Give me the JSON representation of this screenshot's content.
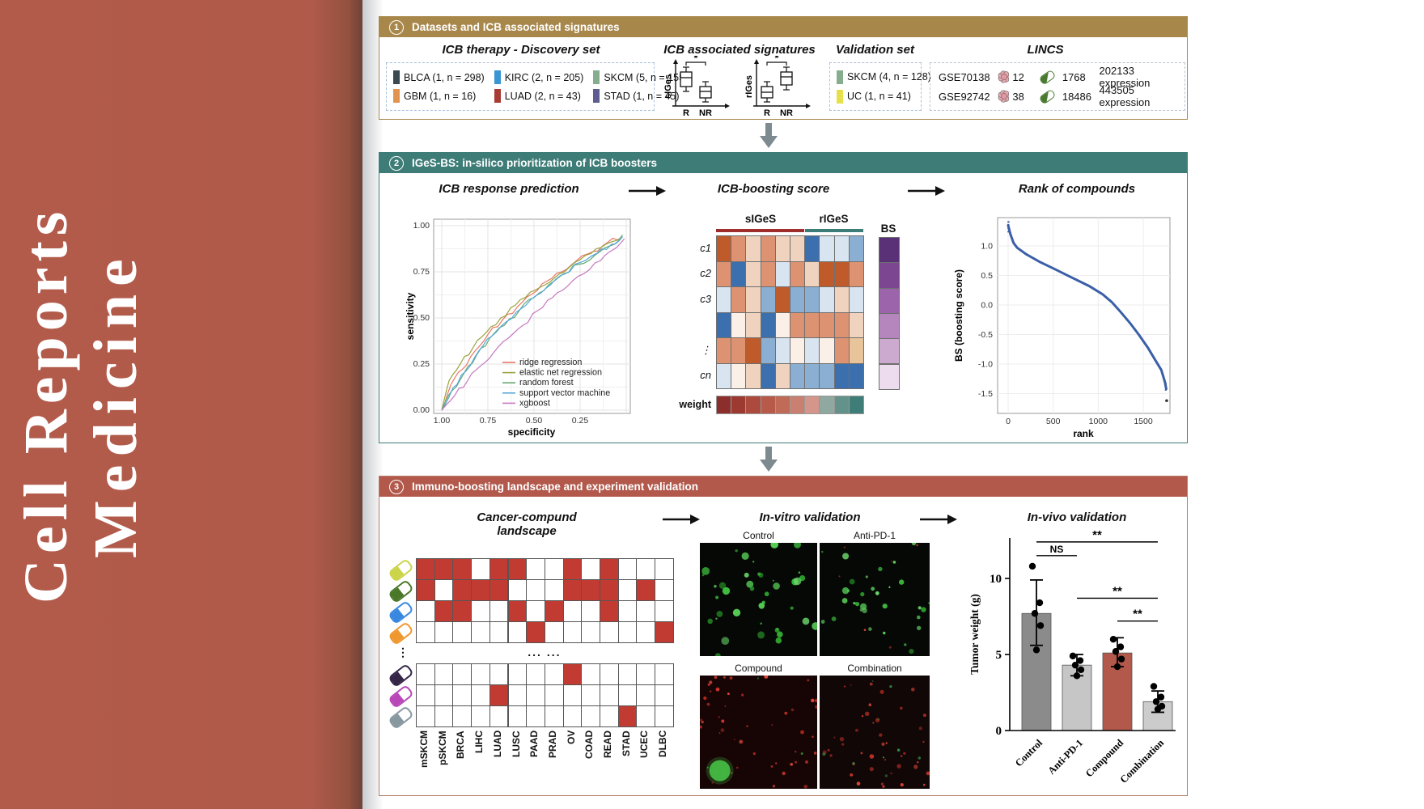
{
  "journal": {
    "line1": "Cell Reports",
    "line2": "Medicine"
  },
  "colors": {
    "band": "#b25b4b",
    "panel1_header": "#a8874b",
    "panel2_header": "#3e7c77",
    "panel3_header": "#b2594c",
    "landscape_red": "#c23b32",
    "sig_bar_red": "#9e2e2e",
    "sig_bar_teal": "#3e7c77",
    "rank_curve": "#3a5fa8"
  },
  "panel1": {
    "number": "1",
    "title": "Datasets and ICB associated signatures",
    "discovery": {
      "title": "ICB therapy - Discovery set",
      "items": [
        {
          "label": "BLCA (1, n = 298)",
          "color": "#3a4850"
        },
        {
          "label": "KIRC (2, n = 205)",
          "color": "#3a96d2"
        },
        {
          "label": "SKCM (5, n = 155)",
          "color": "#86ae8e"
        },
        {
          "label": "GBM (1, n = 16)",
          "color": "#e29350"
        },
        {
          "label": "LUAD (2, n = 43)",
          "color": "#a83c34"
        },
        {
          "label": "STAD (1, n = 45)",
          "color": "#5e5c90"
        }
      ]
    },
    "signatures": {
      "title": "ICB associated signatures",
      "plots": [
        {
          "ylabel": "sIGes",
          "xlabels": [
            "R",
            "NR"
          ],
          "sig": "*",
          "r_high": true
        },
        {
          "ylabel": "rIGes",
          "xlabels": [
            "R",
            "NR"
          ],
          "sig": "*",
          "r_high": false
        }
      ]
    },
    "validation": {
      "title": "Validation set",
      "items": [
        {
          "label": "SKCM (4, n = 128)",
          "color": "#86ae8e"
        },
        {
          "label": "UC (1, n = 41)",
          "color": "#e8e04a"
        }
      ]
    },
    "lincs": {
      "title": "LINCS",
      "rows": [
        {
          "dataset": "GSE70138",
          "cells": "12",
          "compounds": "1768",
          "expression": "202133 expression"
        },
        {
          "dataset": "GSE92742",
          "cells": "38",
          "compounds": "18486",
          "expression": "443505 expression"
        }
      ]
    }
  },
  "panel2": {
    "number": "2",
    "title": "IGeS-BS: in-silico prioritization of ICB boosters",
    "sections": [
      "ICB response prediction",
      "ICB-boosting score",
      "Rank of compounds"
    ],
    "roc": {
      "chart_data": {
        "type": "line",
        "title": "ICB response prediction",
        "xlabel": "specificity",
        "ylabel": "sensitivity",
        "xticks": [
          "1.00",
          "0.75",
          "0.50",
          "0.25"
        ],
        "yticks": [
          "1.00",
          "0.75",
          "0.50",
          "0.25",
          "0.00"
        ],
        "xlim": [
          1.0,
          0.0
        ],
        "ylim": [
          0.0,
          1.0
        ],
        "grid": true,
        "legend_position": "lower-right",
        "series": [
          {
            "name": "ridge regression",
            "color": "#e87868",
            "points": [
              [
                1.0,
                0.0
              ],
              [
                0.95,
                0.14
              ],
              [
                0.89,
                0.22
              ],
              [
                0.82,
                0.32
              ],
              [
                0.75,
                0.41
              ],
              [
                0.67,
                0.49
              ],
              [
                0.59,
                0.56
              ],
              [
                0.51,
                0.63
              ],
              [
                0.43,
                0.7
              ],
              [
                0.35,
                0.75
              ],
              [
                0.27,
                0.81
              ],
              [
                0.18,
                0.86
              ],
              [
                0.1,
                0.91
              ],
              [
                0.02,
                0.94
              ]
            ]
          },
          {
            "name": "elastic net regression",
            "color": "#9aa23c",
            "points": [
              [
                1.0,
                0.0
              ],
              [
                0.96,
                0.16
              ],
              [
                0.9,
                0.25
              ],
              [
                0.83,
                0.34
              ],
              [
                0.76,
                0.42
              ],
              [
                0.68,
                0.5
              ],
              [
                0.6,
                0.57
              ],
              [
                0.52,
                0.64
              ],
              [
                0.44,
                0.68
              ],
              [
                0.36,
                0.74
              ],
              [
                0.28,
                0.8
              ],
              [
                0.19,
                0.85
              ],
              [
                0.11,
                0.9
              ],
              [
                0.02,
                0.94
              ]
            ]
          },
          {
            "name": "random forest",
            "color": "#62aa74",
            "points": [
              [
                1.0,
                0.0
              ],
              [
                0.94,
                0.11
              ],
              [
                0.88,
                0.2
              ],
              [
                0.81,
                0.3
              ],
              [
                0.74,
                0.39
              ],
              [
                0.66,
                0.46
              ],
              [
                0.58,
                0.54
              ],
              [
                0.5,
                0.61
              ],
              [
                0.42,
                0.68
              ],
              [
                0.34,
                0.74
              ],
              [
                0.26,
                0.79
              ],
              [
                0.17,
                0.84
              ],
              [
                0.09,
                0.89
              ],
              [
                0.02,
                0.95
              ]
            ]
          },
          {
            "name": "support vector machine",
            "color": "#58a8d8",
            "points": [
              [
                1.0,
                0.0
              ],
              [
                0.94,
                0.12
              ],
              [
                0.87,
                0.21
              ],
              [
                0.8,
                0.32
              ],
              [
                0.73,
                0.4
              ],
              [
                0.65,
                0.48
              ],
              [
                0.57,
                0.55
              ],
              [
                0.49,
                0.62
              ],
              [
                0.41,
                0.68
              ],
              [
                0.33,
                0.74
              ],
              [
                0.25,
                0.8
              ],
              [
                0.16,
                0.85
              ],
              [
                0.08,
                0.9
              ],
              [
                0.02,
                0.94
              ]
            ]
          },
          {
            "name": "xgboost",
            "color": "#c678c0",
            "points": [
              [
                1.0,
                0.0
              ],
              [
                0.93,
                0.08
              ],
              [
                0.86,
                0.16
              ],
              [
                0.79,
                0.24
              ],
              [
                0.72,
                0.31
              ],
              [
                0.64,
                0.39
              ],
              [
                0.56,
                0.46
              ],
              [
                0.48,
                0.54
              ],
              [
                0.4,
                0.61
              ],
              [
                0.32,
                0.67
              ],
              [
                0.23,
                0.74
              ],
              [
                0.14,
                0.81
              ],
              [
                0.07,
                0.87
              ],
              [
                0.01,
                0.93
              ]
            ]
          }
        ]
      }
    },
    "heatmap": {
      "group1_label": "sIGeS",
      "group2_label": "rIGeS",
      "bs_label": "BS",
      "weight_label": "weight",
      "row_labels": [
        "c1",
        "c2",
        "c3",
        "",
        "⋮",
        "cn"
      ],
      "palette": {
        "O": "#bf5b2b",
        "o": "#dd9372",
        "p": "#f0d3bf",
        "w": "#faf0e8",
        "B": "#3c6fae",
        "b": "#8aafd3",
        "l": "#d8e4f0",
        "t": "#e8c49a"
      },
      "grid": [
        [
          "O",
          "o",
          "p",
          "o",
          "p",
          "p",
          "B",
          "l",
          "l",
          "b"
        ],
        [
          "o",
          "B",
          "p",
          "o",
          "l",
          "o",
          "p",
          "O",
          "O",
          "o"
        ],
        [
          "l",
          "o",
          "p",
          "b",
          "O",
          "b",
          "b",
          "l",
          "p",
          "l"
        ],
        [
          "B",
          "w",
          "p",
          "B",
          "w",
          "o",
          "o",
          "o",
          "o",
          "p"
        ],
        [
          "o",
          "o",
          "O",
          "b",
          "l",
          "w",
          "l",
          "w",
          "o",
          "t"
        ],
        [
          "l",
          "w",
          "p",
          "B",
          "p",
          "b",
          "b",
          "b",
          "B",
          "B"
        ]
      ],
      "group1_cols": 6,
      "group2_cols": 4,
      "bs_colors": [
        "#5a3077",
        "#7c4691",
        "#9c64aa",
        "#b586bd",
        "#ccaacf",
        "#ecdcee"
      ],
      "weight_colors": [
        "#8c2f2c",
        "#9c3a32",
        "#ac4a3e",
        "#b85a4a",
        "#c06a58",
        "#ca8070",
        "#d4968a",
        "#8fa8a0",
        "#62928a",
        "#3f7d78"
      ]
    },
    "rank": {
      "chart_data": {
        "type": "scatter",
        "title": "Rank of compounds",
        "xlabel": "rank",
        "ylabel": "BS (boosting score)",
        "xticks": [
          "0",
          "500",
          "1000",
          "1500"
        ],
        "yticks": [
          "1.0",
          "0.5",
          "0.0",
          "-0.5",
          "-1.0",
          "-1.5"
        ],
        "xlim": [
          0,
          1800
        ],
        "ylim": [
          -1.7,
          1.45
        ],
        "curve_color": "#3a5fa8",
        "points": [
          [
            0,
            1.35
          ],
          [
            25,
            1.2
          ],
          [
            60,
            1.05
          ],
          [
            100,
            0.97
          ],
          [
            200,
            0.86
          ],
          [
            350,
            0.73
          ],
          [
            500,
            0.62
          ],
          [
            700,
            0.47
          ],
          [
            900,
            0.32
          ],
          [
            1050,
            0.18
          ],
          [
            1150,
            0.05
          ],
          [
            1250,
            -0.12
          ],
          [
            1350,
            -0.3
          ],
          [
            1450,
            -0.5
          ],
          [
            1550,
            -0.72
          ],
          [
            1640,
            -0.95
          ],
          [
            1700,
            -1.1
          ],
          [
            1740,
            -1.3
          ],
          [
            1755,
            -1.42
          ]
        ],
        "outlier": [
          1760,
          -1.62
        ]
      }
    }
  },
  "panel3": {
    "number": "3",
    "title": "Immuno-boosting landscape and experiment validation",
    "sections": [
      "Cancer-compund landscape",
      "In-vitro validation",
      "In-vivo validation"
    ],
    "landscape": {
      "columns": [
        "mSKCM",
        "pSKCM",
        "BRCA",
        "LIHC",
        "LUAD",
        "LUSC",
        "PAAD",
        "PRAD",
        "OV",
        "COAD",
        "READ",
        "STAD",
        "UCEC",
        "DLBC"
      ],
      "ellipsis": "... ...",
      "pill_dots": "⋮",
      "pill_colors": [
        "#ccd44a",
        "#4a7828",
        "#3888e0",
        "#f09830",
        null,
        "#352647",
        "#b848b8",
        "#8898a0"
      ],
      "rows": [
        [
          1,
          1,
          1,
          0,
          1,
          1,
          0,
          0,
          1,
          0,
          1,
          0,
          0,
          0
        ],
        [
          1,
          0,
          1,
          1,
          1,
          0,
          0,
          0,
          1,
          1,
          1,
          0,
          1,
          0
        ],
        [
          0,
          1,
          1,
          0,
          0,
          1,
          0,
          1,
          0,
          0,
          1,
          0,
          0,
          0
        ],
        [
          0,
          0,
          0,
          0,
          0,
          0,
          1,
          0,
          0,
          0,
          0,
          0,
          0,
          1
        ],
        null,
        [
          0,
          0,
          0,
          0,
          0,
          0,
          0,
          0,
          1,
          0,
          0,
          0,
          0,
          0
        ],
        [
          0,
          0,
          0,
          0,
          1,
          0,
          0,
          0,
          0,
          0,
          0,
          0,
          0,
          0
        ],
        [
          0,
          0,
          0,
          0,
          0,
          0,
          0,
          0,
          0,
          0,
          0,
          1,
          0,
          0
        ]
      ]
    },
    "invitro": {
      "labels": [
        "Control",
        "Anti-PD-1",
        "Compound",
        "Combination"
      ]
    },
    "invivo": {
      "chart_data": {
        "type": "bar",
        "title": "In-vivo validation",
        "ylabel": "Tumor weight (g)",
        "yticks": [
          0,
          5,
          10
        ],
        "ylim": [
          0,
          13.7
        ],
        "categories": [
          "Control",
          "Anti-PD-1",
          "Compound",
          "Combination"
        ],
        "values": [
          7.7,
          4.3,
          5.1,
          1.9
        ],
        "bar_colors": [
          "#8b8b8b",
          "#c6c6c6",
          "#b2594c",
          "#cccccc"
        ],
        "error_lo": [
          5.6,
          3.6,
          4.2,
          1.2
        ],
        "error_hi": [
          9.9,
          5.0,
          6.1,
          2.6
        ],
        "points": [
          [
            10.8,
            8.4,
            7.7,
            6.9,
            5.3
          ],
          [
            4.9,
            4.6,
            4.3,
            4.0,
            3.6
          ],
          [
            6.0,
            5.5,
            5.2,
            4.7,
            4.2
          ],
          [
            2.9,
            2.2,
            1.9,
            1.6,
            1.4
          ]
        ],
        "significance": [
          {
            "from": 0,
            "to": 3,
            "label": "**",
            "y": 12.4
          },
          {
            "from": 0,
            "to": 1,
            "label": "NS",
            "y": 11.5
          },
          {
            "from": 1,
            "to": 3,
            "label": "**",
            "y": 8.7
          },
          {
            "from": 2,
            "to": 3,
            "label": "**",
            "y": 7.2
          }
        ]
      }
    }
  }
}
